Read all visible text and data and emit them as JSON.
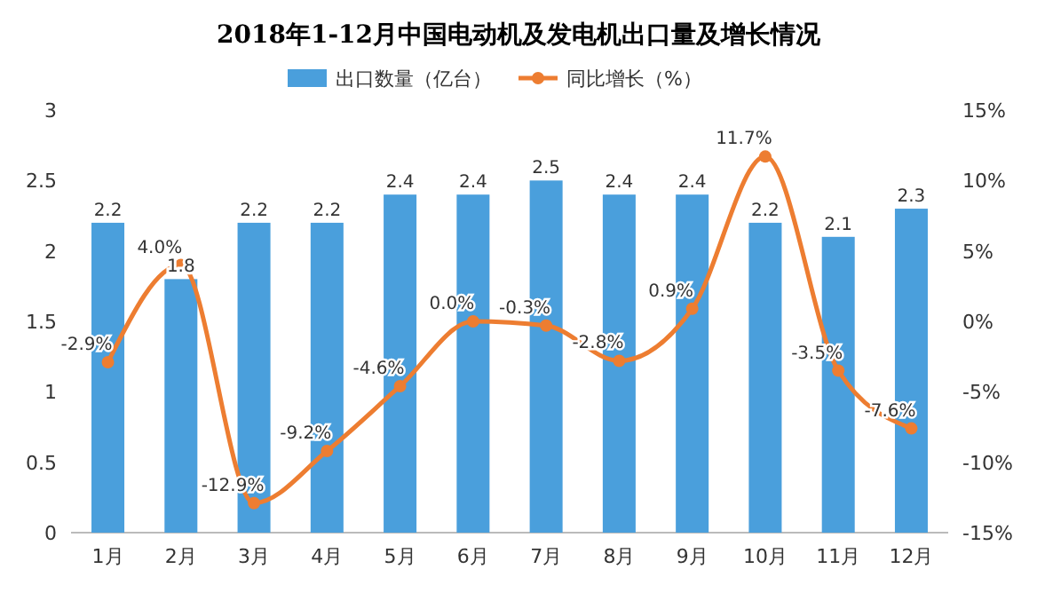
{
  "chart_data": {
    "type": "bar",
    "title": "2018年1-12月中国电动机及发电机出口量及增长情况",
    "categories": [
      "1月",
      "2月",
      "3月",
      "4月",
      "5月",
      "6月",
      "7月",
      "8月",
      "9月",
      "10月",
      "11月",
      "12月"
    ],
    "series": [
      {
        "name": "出口数量（亿台）",
        "color": "#4a9fdc",
        "values": [
          2.2,
          1.8,
          2.2,
          2.2,
          2.4,
          2.4,
          2.5,
          2.4,
          2.4,
          2.2,
          2.1,
          2.3
        ],
        "value_labels": [
          "2.2",
          "1.8",
          "2.2",
          "2.2",
          "2.4",
          "2.4",
          "2.5",
          "2.4",
          "2.4",
          "2.2",
          "2.1",
          "2.3"
        ]
      },
      {
        "name": "同比增长（%）",
        "type": "line",
        "axis": "y2",
        "color": "#ed7d31",
        "marker": "circle",
        "values": [
          -2.9,
          4.0,
          -12.9,
          -9.2,
          -4.6,
          0.0,
          -0.3,
          -2.8,
          0.9,
          11.7,
          -3.5,
          -7.6
        ],
        "value_labels": [
          "-2.9%",
          "4.0%",
          "-12.9%",
          "-9.2%",
          "-4.6%",
          "0.0%",
          "-0.3%",
          "-2.8%",
          "0.9%",
          "11.7%",
          "-3.5%",
          "-7.6%"
        ]
      }
    ],
    "ylim": [
      0,
      3
    ],
    "yticks": [
      0,
      0.5,
      1,
      1.5,
      2,
      2.5,
      3
    ],
    "y2lim": [
      -15,
      15
    ],
    "y2ticks": [
      {
        "value": -15,
        "label": "-15%"
      },
      {
        "value": -10,
        "label": "-10%"
      },
      {
        "value": -5,
        "label": "-5%"
      },
      {
        "value": 0,
        "label": "0%"
      },
      {
        "value": 5,
        "label": "5%"
      },
      {
        "value": 10,
        "label": "10%"
      },
      {
        "value": 15,
        "label": "15%"
      }
    ],
    "legend": "top"
  }
}
